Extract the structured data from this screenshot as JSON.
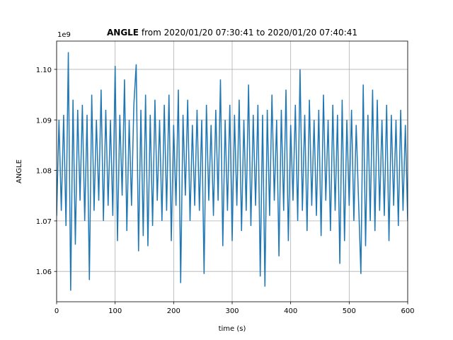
{
  "chart_data": {
    "type": "line",
    "title_bold": "ANGLE",
    "title": "from 2020/01/20 07:30:41 to 2020/01/20 07:40:41",
    "offset_label": "1e9",
    "xlabel": "time (s)",
    "ylabel": "ANGLE",
    "color": "#1f77b4",
    "grid": true,
    "xlim": [
      0,
      600
    ],
    "xticks": [
      0,
      100,
      200,
      300,
      400,
      500,
      600
    ],
    "ylim": [
      1.054,
      1.1056
    ],
    "yticks": [
      1.06,
      1.07,
      1.08,
      1.09,
      {
        "value": 1.1,
        "label": "1.10"
      }
    ],
    "x": [
      0,
      4,
      8,
      12,
      16,
      20,
      24,
      28,
      32,
      36,
      40,
      44,
      48,
      52,
      56,
      60,
      64,
      68,
      72,
      76,
      80,
      84,
      88,
      92,
      96,
      100,
      104,
      108,
      112,
      116,
      120,
      124,
      128,
      132,
      136,
      140,
      144,
      148,
      152,
      156,
      160,
      164,
      168,
      172,
      176,
      180,
      184,
      188,
      192,
      196,
      200,
      204,
      208,
      212,
      216,
      220,
      224,
      228,
      232,
      236,
      240,
      244,
      248,
      252,
      256,
      260,
      264,
      268,
      272,
      276,
      280,
      284,
      288,
      292,
      296,
      300,
      304,
      308,
      312,
      316,
      320,
      324,
      328,
      332,
      336,
      340,
      344,
      348,
      352,
      356,
      360,
      364,
      368,
      372,
      376,
      380,
      384,
      388,
      392,
      396,
      400,
      404,
      408,
      412,
      416,
      420,
      424,
      428,
      432,
      436,
      440,
      444,
      448,
      452,
      456,
      460,
      464,
      468,
      472,
      476,
      480,
      484,
      488,
      492,
      496,
      500,
      504,
      508,
      512,
      516,
      520,
      524,
      528,
      532,
      536,
      540,
      544,
      548,
      552,
      556,
      560,
      564,
      568,
      572,
      576,
      580,
      584,
      588,
      592,
      596,
      600
    ],
    "values": [
      1.071,
      1.09,
      1.072,
      1.091,
      1.069,
      1.1034,
      1.0562,
      1.094,
      1.0653,
      1.092,
      1.074,
      1.093,
      1.07,
      1.091,
      1.0583,
      1.095,
      1.072,
      1.09,
      1.074,
      1.096,
      1.07,
      1.092,
      1.073,
      1.09,
      1.071,
      1.1007,
      1.066,
      1.091,
      1.075,
      1.098,
      1.068,
      1.09,
      1.073,
      1.093,
      1.101,
      1.064,
      1.092,
      1.067,
      1.095,
      1.065,
      1.091,
      1.069,
      1.094,
      1.074,
      1.09,
      1.07,
      1.093,
      1.072,
      1.095,
      1.066,
      1.089,
      1.073,
      1.096,
      1.0577,
      1.091,
      1.075,
      1.094,
      1.07,
      1.089,
      1.073,
      1.092,
      1.072,
      1.09,
      1.0595,
      1.093,
      1.074,
      1.089,
      1.071,
      1.092,
      1.074,
      1.098,
      1.065,
      1.09,
      1.072,
      1.093,
      1.066,
      1.091,
      1.073,
      1.094,
      1.068,
      1.09,
      1.072,
      1.097,
      1.069,
      1.091,
      1.073,
      1.093,
      1.059,
      1.091,
      1.057,
      1.092,
      1.071,
      1.095,
      1.074,
      1.09,
      1.063,
      1.092,
      1.072,
      1.096,
      1.066,
      1.089,
      1.074,
      1.093,
      1.07,
      1.1,
      1.072,
      1.091,
      1.068,
      1.094,
      1.073,
      1.09,
      1.071,
      1.092,
      1.067,
      1.095,
      1.074,
      1.09,
      1.068,
      1.093,
      1.072,
      1.091,
      1.0615,
      1.094,
      1.066,
      1.09,
      1.073,
      1.092,
      1.07,
      1.089,
      1.074,
      1.0595,
      1.097,
      1.065,
      1.091,
      1.07,
      1.096,
      1.068,
      1.094,
      1.072,
      1.09,
      1.071,
      1.093,
      1.066,
      1.091,
      1.073,
      1.09,
      1.069,
      1.092,
      1.072,
      1.089,
      1.07
    ]
  }
}
